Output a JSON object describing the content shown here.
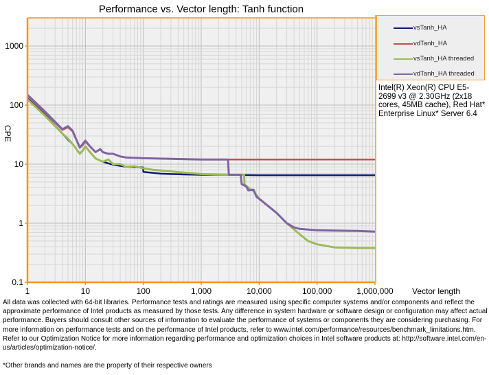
{
  "chart_data": {
    "type": "line",
    "title": "Performance vs. Vector length: Tanh function",
    "xlabel": "Vector length",
    "ylabel": "CPE",
    "xscale": "log",
    "yscale": "log",
    "xlim": [
      1,
      1000000
    ],
    "ylim": [
      0.1,
      3000
    ],
    "grid": true,
    "legend_position": "right",
    "x_tick_labels": [
      "1",
      "10",
      "100",
      "1,000",
      "10,000",
      "100,000",
      "1,000,000"
    ],
    "x_ticks": [
      1,
      10,
      100,
      1000,
      10000,
      100000,
      1000000
    ],
    "y_tick_labels": [
      "0.1",
      "1",
      "10",
      "100",
      "1000"
    ],
    "y_ticks": [
      0.1,
      1,
      10,
      100,
      1000
    ],
    "series": [
      {
        "name": "vsTanh_HA",
        "color": "#0a1a7a",
        "points": [
          [
            1,
            130
          ],
          [
            2,
            68
          ],
          [
            4,
            33
          ],
          [
            5,
            26
          ],
          [
            6,
            22
          ],
          [
            8,
            15
          ],
          [
            9,
            17
          ],
          [
            10,
            20
          ],
          [
            12,
            16
          ],
          [
            15,
            12.5
          ],
          [
            20,
            11
          ],
          [
            30,
            9.8
          ],
          [
            50,
            9
          ],
          [
            99,
            8.8
          ],
          [
            100,
            7.4
          ],
          [
            150,
            7.1
          ],
          [
            200,
            6.9
          ],
          [
            500,
            6.7
          ],
          [
            1000,
            6.6
          ],
          [
            3000,
            6.6
          ],
          [
            10000,
            6.5
          ],
          [
            100000,
            6.5
          ],
          [
            1000000,
            6.5
          ]
        ]
      },
      {
        "name": "vdTanh_HA",
        "color": "#c0504d",
        "points": [
          [
            1,
            145
          ],
          [
            2,
            75
          ],
          [
            4,
            38
          ],
          [
            5,
            42
          ],
          [
            6,
            36
          ],
          [
            8,
            19
          ],
          [
            9,
            21
          ],
          [
            10,
            24
          ],
          [
            12,
            20
          ],
          [
            15,
            16
          ],
          [
            18,
            18
          ],
          [
            20,
            16
          ],
          [
            25,
            15
          ],
          [
            30,
            15
          ],
          [
            40,
            13.5
          ],
          [
            50,
            13
          ],
          [
            100,
            12.6
          ],
          [
            300,
            12.3
          ],
          [
            1000,
            12
          ],
          [
            3000,
            12
          ],
          [
            10000,
            12
          ],
          [
            100000,
            12
          ],
          [
            1000000,
            12
          ]
        ]
      },
      {
        "name": "vsTanh_HA threaded",
        "color": "#9bbb59",
        "points": [
          [
            1,
            125
          ],
          [
            2,
            66
          ],
          [
            4,
            33
          ],
          [
            5,
            27
          ],
          [
            6,
            22
          ],
          [
            8,
            15
          ],
          [
            9,
            17
          ],
          [
            10,
            20
          ],
          [
            12,
            16
          ],
          [
            15,
            12.5
          ],
          [
            20,
            11
          ],
          [
            25,
            12
          ],
          [
            30,
            10
          ],
          [
            40,
            10
          ],
          [
            50,
            9
          ],
          [
            70,
            9.2
          ],
          [
            100,
            8.5
          ],
          [
            150,
            8
          ],
          [
            200,
            7.8
          ],
          [
            500,
            7.2
          ],
          [
            1000,
            6.8
          ],
          [
            3000,
            6.6
          ],
          [
            5500,
            6.6
          ],
          [
            5600,
            4.5
          ],
          [
            7000,
            3.8
          ],
          [
            8000,
            3.5
          ],
          [
            10000,
            2.6
          ],
          [
            20000,
            1.5
          ],
          [
            30000,
            1
          ],
          [
            50000,
            0.65
          ],
          [
            70000,
            0.5
          ],
          [
            100000,
            0.44
          ],
          [
            200000,
            0.39
          ],
          [
            500000,
            0.38
          ],
          [
            1000000,
            0.38
          ]
        ]
      },
      {
        "name": "vdTanh_HA threaded",
        "color": "#8064a2",
        "points": [
          [
            1,
            150
          ],
          [
            2,
            78
          ],
          [
            4,
            39
          ],
          [
            5,
            44
          ],
          [
            6,
            37
          ],
          [
            8,
            19
          ],
          [
            9,
            22
          ],
          [
            10,
            25
          ],
          [
            12,
            20
          ],
          [
            15,
            16
          ],
          [
            18,
            18
          ],
          [
            20,
            16
          ],
          [
            25,
            15
          ],
          [
            30,
            15
          ],
          [
            40,
            13.5
          ],
          [
            50,
            13
          ],
          [
            100,
            12.6
          ],
          [
            300,
            12.3
          ],
          [
            1000,
            12
          ],
          [
            2900,
            12
          ],
          [
            3000,
            6.6
          ],
          [
            4800,
            6.6
          ],
          [
            5000,
            4.6
          ],
          [
            6000,
            4.2
          ],
          [
            6500,
            3.6
          ],
          [
            8000,
            3.7
          ],
          [
            9000,
            2.8
          ],
          [
            10000,
            2.6
          ],
          [
            20000,
            1.5
          ],
          [
            30000,
            1
          ],
          [
            40000,
            0.85
          ],
          [
            50000,
            0.8
          ],
          [
            100000,
            0.76
          ],
          [
            200000,
            0.75
          ],
          [
            500000,
            0.74
          ],
          [
            1000000,
            0.72
          ]
        ]
      }
    ]
  },
  "cpu_note": "Intel(R) Xeon(R) CPU E5-2699 v3 @ 2.30GHz (2x18 cores, 45MB cache), Red Hat* Enterprise Linux* Server 6.4",
  "footer": {
    "disclaimer": "All data was collected with 64-bit libraries. Performance tests and ratings are measured using specific computer systems and/or components and reflect the approximate performance of Intel products as measured by those tests. Any difference in system hardware or software design or configuration may affect actual performance. Buyers should consult other sources of information to evaluate the performance of systems or components they are considering purchasing. For more information on performance tests and on the performance of Intel products, refer to www.intel.com/performance/resources/benchmark_limitations.htm. Refer to our Optimization Notice for more information regarding performance and optimization choices in Intel software products at: http://software.intel.com/en-us/articles/optimization-notice/.",
    "trademark": "*Other brands and names are the property of their respective owners"
  }
}
